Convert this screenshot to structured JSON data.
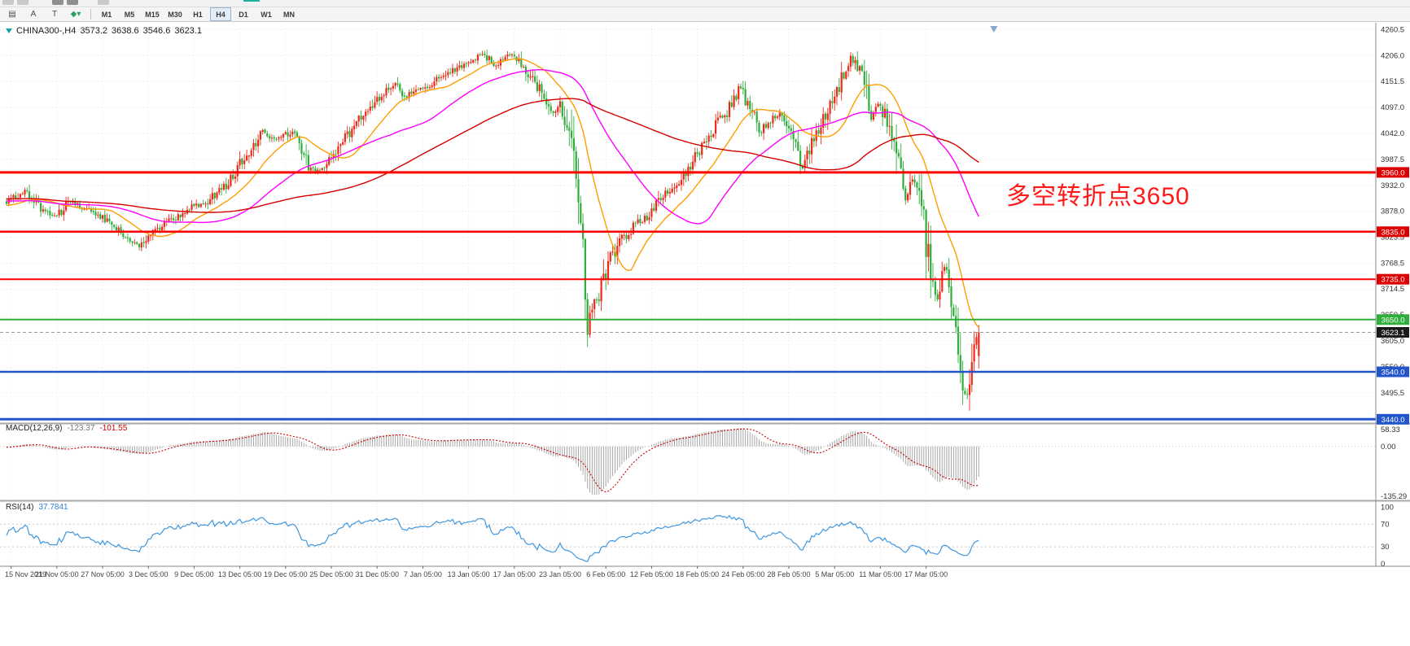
{
  "colors": {
    "up": "#f02818",
    "down": "#2fae3c",
    "background": "#ffffff",
    "annotation": "#ff1a1a",
    "rsi_line": "#3f97e0",
    "macd_hist": "#a6a6a6",
    "macd_signal": "#cc0000",
    "grid": "#e6e6e6"
  },
  "toolbar": {
    "tools": [
      {
        "name": "drawing-tools-icon",
        "glyph": "▤"
      },
      {
        "name": "text-label-tool",
        "glyph": "A"
      },
      {
        "name": "text-tool",
        "glyph": "T"
      },
      {
        "name": "shapes-dropdown",
        "glyph": "◆▾",
        "color": "#2e9e62"
      }
    ],
    "timeframes": [
      {
        "label": "M1"
      },
      {
        "label": "M5"
      },
      {
        "label": "M15"
      },
      {
        "label": "M30"
      },
      {
        "label": "H1"
      },
      {
        "label": "H4",
        "selected": true
      },
      {
        "label": "D1"
      },
      {
        "label": "W1"
      },
      {
        "label": "MN"
      }
    ]
  },
  "chart": {
    "title": {
      "symbol_period": "CHINA300-,H4",
      "open": "3573.2",
      "high": "3638.6",
      "low": "3546.6",
      "close": "3623.1"
    },
    "annotation": {
      "text": "多空转折点3650",
      "color": "#ff1a1a"
    },
    "price_axis": {
      "labels": [
        "4260.5",
        "4206.0",
        "4151.5",
        "4097.0",
        "4042.0",
        "3987.5",
        "3932.0",
        "3878.0",
        "3823.5",
        "3768.5",
        "3714.5",
        "3659.5",
        "3605.0",
        "3550.0",
        "3495.5",
        "3441.0"
      ]
    },
    "time_axis": {
      "labels": [
        "15 Nov 2019",
        "21 Nov 05:00",
        "27 Nov 05:00",
        "3 Dec 05:00",
        "9 Dec 05:00",
        "13 Dec 05:00",
        "19 Dec 05:00",
        "25 Dec 05:00",
        "31 Dec 05:00",
        "7 Jan 05:00",
        "13 Jan 05:00",
        "17 Jan 05:00",
        "23 Jan 05:00",
        "6 Feb 05:00",
        "12 Feb 05:00",
        "18 Feb 05:00",
        "24 Feb 05:00",
        "28 Feb 05:00",
        "5 Mar 05:00",
        "11 Mar 05:00",
        "17 Mar 05:00"
      ]
    },
    "hlines": [
      {
        "price": 3960.0,
        "tag": "3960.0",
        "color": "#ff0000",
        "tag_bg": "#dd0000",
        "width": 3
      },
      {
        "price": 3835.0,
        "tag": "3835.0",
        "color": "#ff0000",
        "tag_bg": "#dd0000",
        "width": 2.5
      },
      {
        "price": 3735.0,
        "tag": "3735.0",
        "color": "#ff0000",
        "tag_bg": "#dd0000",
        "width": 2
      },
      {
        "price": 3650.0,
        "tag": "3650.0",
        "color": "#2fae3c",
        "tag_bg": "#2fae3c",
        "width": 2
      },
      {
        "price": 3540.0,
        "tag": "3540.0",
        "color": "#2255cc",
        "tag_bg": "#2255cc",
        "width": 2.5
      },
      {
        "price": 3440.0,
        "tag": "3440.0",
        "color": "#2255cc",
        "tag_bg": "#2255cc",
        "width": 3
      }
    ],
    "current_price": {
      "value": 3623.1,
      "tag": "3623.1"
    },
    "mas": [
      {
        "period": 21,
        "color": "#ff9d00"
      },
      {
        "period": 55,
        "color": "#ff00ff"
      },
      {
        "period": 120,
        "color": "#d40000"
      }
    ]
  },
  "macd": {
    "title": "MACD(12,26,9)",
    "value1": "-123.37",
    "value2": "-101.55",
    "fast": 12,
    "slow": 26,
    "signal_period": 9,
    "axis": [
      "58.33",
      "0.00",
      "-135.29"
    ]
  },
  "rsi": {
    "title": "RSI(14)",
    "value": "37.7841",
    "period": 14,
    "levels": [
      70,
      30
    ],
    "axis": [
      "100",
      "70",
      "30",
      "0"
    ]
  },
  "chart_data": {
    "type": "candlestick",
    "symbol": "CHINA300",
    "timeframe": "H4",
    "bars_visible": 426,
    "preroll": 130,
    "seed": 20200323,
    "last_bar": [
      3573.2,
      3638.6,
      3546.6,
      3623.1
    ],
    "keypoints": [
      [
        -130,
        3870
      ],
      [
        -100,
        3930
      ],
      [
        -70,
        3890
      ],
      [
        -40,
        3915
      ],
      [
        -15,
        3885
      ],
      [
        0,
        3895
      ],
      [
        8,
        3922
      ],
      [
        15,
        3885
      ],
      [
        22,
        3868
      ],
      [
        28,
        3902
      ],
      [
        36,
        3880
      ],
      [
        44,
        3858
      ],
      [
        52,
        3820
      ],
      [
        58,
        3806
      ],
      [
        64,
        3835
      ],
      [
        72,
        3860
      ],
      [
        80,
        3885
      ],
      [
        88,
        3898
      ],
      [
        96,
        3935
      ],
      [
        104,
        3992
      ],
      [
        112,
        4045
      ],
      [
        118,
        4028
      ],
      [
        126,
        4048
      ],
      [
        133,
        3963
      ],
      [
        139,
        3972
      ],
      [
        145,
        4008
      ],
      [
        152,
        4062
      ],
      [
        158,
        4090
      ],
      [
        165,
        4128
      ],
      [
        170,
        4152
      ],
      [
        174,
        4118
      ],
      [
        180,
        4135
      ],
      [
        186,
        4148
      ],
      [
        192,
        4168
      ],
      [
        200,
        4188
      ],
      [
        208,
        4212
      ],
      [
        213,
        4185
      ],
      [
        218,
        4202
      ],
      [
        222,
        4205
      ],
      [
        228,
        4168
      ],
      [
        234,
        4130
      ],
      [
        239,
        4088
      ],
      [
        242,
        4108
      ],
      [
        245,
        4062
      ],
      [
        248,
        3988
      ],
      [
        250,
        3920
      ],
      [
        252,
        3800
      ],
      [
        254,
        3640
      ],
      [
        256,
        3668
      ],
      [
        259,
        3700
      ],
      [
        263,
        3768
      ],
      [
        268,
        3812
      ],
      [
        274,
        3845
      ],
      [
        280,
        3868
      ],
      [
        286,
        3905
      ],
      [
        292,
        3932
      ],
      [
        298,
        3968
      ],
      [
        304,
        4015
      ],
      [
        310,
        4060
      ],
      [
        315,
        4088
      ],
      [
        319,
        4125
      ],
      [
        321,
        4142
      ],
      [
        324,
        4108
      ],
      [
        329,
        4042
      ],
      [
        334,
        4072
      ],
      [
        338,
        4082
      ],
      [
        343,
        4042
      ],
      [
        348,
        3972
      ],
      [
        352,
        4018
      ],
      [
        357,
        4070
      ],
      [
        362,
        4120
      ],
      [
        366,
        4165
      ],
      [
        369,
        4200
      ],
      [
        372,
        4185
      ],
      [
        375,
        4145
      ],
      [
        378,
        4082
      ],
      [
        381,
        4105
      ],
      [
        384,
        4080
      ],
      [
        387,
        4052
      ],
      [
        390,
        3968
      ],
      [
        393,
        3895
      ],
      [
        396,
        3942
      ],
      [
        399,
        3905
      ],
      [
        401,
        3848
      ],
      [
        404,
        3742
      ],
      [
        407,
        3695
      ],
      [
        410,
        3762
      ],
      [
        413,
        3688
      ],
      [
        416,
        3565
      ],
      [
        418,
        3505
      ],
      [
        420,
        3478
      ],
      [
        421,
        3528
      ],
      [
        423,
        3585
      ],
      [
        425,
        3623.1
      ]
    ]
  }
}
